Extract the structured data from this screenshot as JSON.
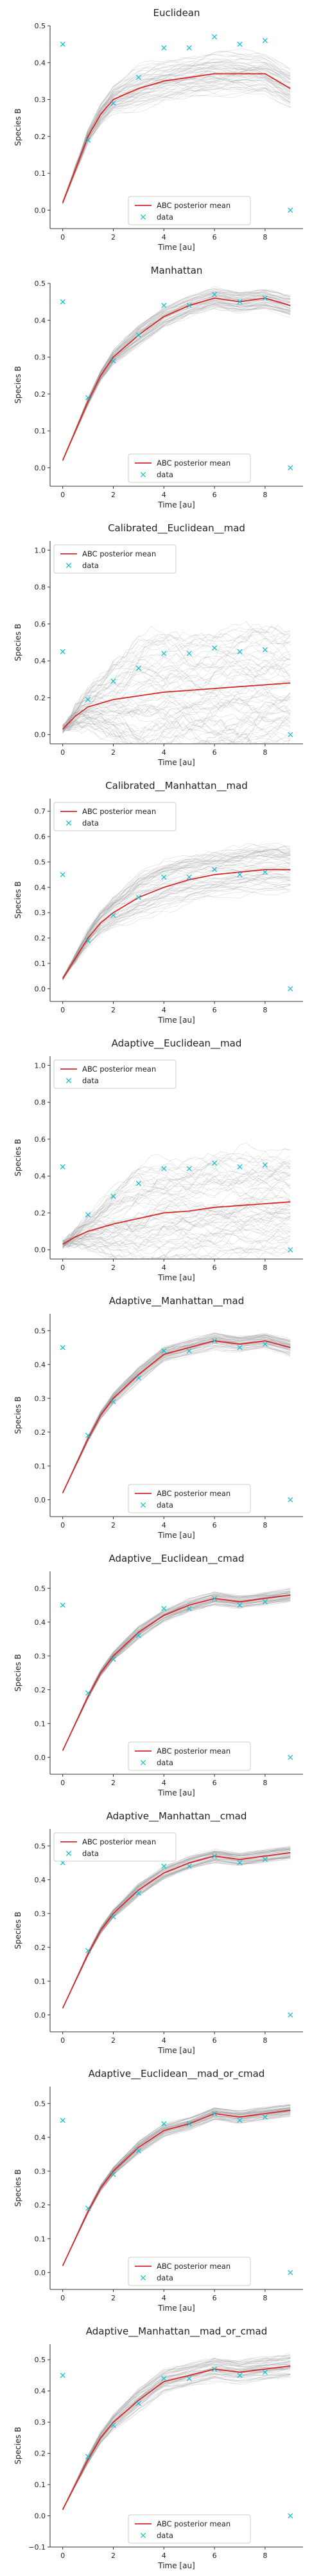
{
  "colors": {
    "mean": "#d62728",
    "data": "#17becf",
    "samples": "#9a9a9a",
    "legend_border": "#cccccc"
  },
  "chart_data": [
    {
      "type": "line",
      "title": "Euclidean",
      "xlabel": "Time [au]",
      "ylabel": "Species B",
      "xlim": [
        -0.5,
        9.5
      ],
      "ylim": [
        -0.05,
        0.5
      ],
      "xticks": [
        0,
        2,
        4,
        6,
        8
      ],
      "yticks": [
        0.0,
        0.1,
        0.2,
        0.3,
        0.4,
        0.5
      ],
      "ytick_labels": [
        "0.0",
        "0.1",
        "0.2",
        "0.3",
        "0.4",
        "0.5"
      ],
      "legend": {
        "placement": "lower-center",
        "entries": [
          "ABC posterior mean",
          "data"
        ]
      },
      "series": [
        {
          "name": "ABC posterior mean",
          "kind": "line",
          "x": [
            0,
            0.5,
            1,
            1.5,
            2,
            3,
            4,
            5,
            6,
            7,
            8,
            9
          ],
          "y": [
            0.02,
            0.11,
            0.2,
            0.26,
            0.3,
            0.33,
            0.35,
            0.36,
            0.37,
            0.37,
            0.37,
            0.33
          ]
        },
        {
          "name": "data",
          "kind": "scatter",
          "x": [
            0,
            1,
            2,
            3,
            4,
            5,
            6,
            7,
            8,
            9
          ],
          "y": [
            0.45,
            0.19,
            0.29,
            0.36,
            0.44,
            0.44,
            0.47,
            0.45,
            0.46,
            0.0
          ]
        }
      ],
      "band": {
        "spread": 0.06,
        "n": 60
      }
    },
    {
      "type": "line",
      "title": "Manhattan",
      "xlabel": "Time [au]",
      "ylabel": "Species B",
      "xlim": [
        -0.5,
        9.5
      ],
      "ylim": [
        -0.05,
        0.5
      ],
      "xticks": [
        0,
        2,
        4,
        6,
        8
      ],
      "yticks": [
        0.0,
        0.1,
        0.2,
        0.3,
        0.4,
        0.5
      ],
      "ytick_labels": [
        "0.0",
        "0.1",
        "0.2",
        "0.3",
        "0.4",
        "0.5"
      ],
      "legend": {
        "placement": "lower-center",
        "entries": [
          "ABC posterior mean",
          "data"
        ]
      },
      "series": [
        {
          "name": "ABC posterior mean",
          "kind": "line",
          "x": [
            0,
            0.5,
            1,
            1.5,
            2,
            3,
            4,
            5,
            6,
            7,
            8,
            9
          ],
          "y": [
            0.02,
            0.1,
            0.18,
            0.25,
            0.3,
            0.36,
            0.41,
            0.44,
            0.46,
            0.45,
            0.46,
            0.44
          ]
        },
        {
          "name": "data",
          "kind": "scatter",
          "x": [
            0,
            1,
            2,
            3,
            4,
            5,
            6,
            7,
            8,
            9
          ],
          "y": [
            0.45,
            0.19,
            0.29,
            0.36,
            0.44,
            0.44,
            0.47,
            0.45,
            0.46,
            0.0
          ]
        }
      ],
      "band": {
        "spread": 0.03,
        "n": 60
      }
    },
    {
      "type": "line",
      "title": "Calibrated__Euclidean__mad",
      "xlabel": "Time [au]",
      "ylabel": "Species B",
      "xlim": [
        -0.5,
        9.5
      ],
      "ylim": [
        -0.05,
        1.05
      ],
      "xticks": [
        0,
        2,
        4,
        6,
        8
      ],
      "yticks": [
        0.0,
        0.2,
        0.4,
        0.6,
        0.8,
        1.0
      ],
      "ytick_labels": [
        "0.0",
        "0.2",
        "0.4",
        "0.6",
        "0.8",
        "1.0"
      ],
      "legend": {
        "placement": "upper-left",
        "entries": [
          "ABC posterior mean",
          "data"
        ]
      },
      "series": [
        {
          "name": "ABC posterior mean",
          "kind": "line",
          "x": [
            0,
            0.5,
            1,
            1.5,
            2,
            3,
            4,
            5,
            6,
            7,
            8,
            9
          ],
          "y": [
            0.03,
            0.1,
            0.15,
            0.17,
            0.19,
            0.21,
            0.23,
            0.24,
            0.25,
            0.26,
            0.27,
            0.28
          ]
        },
        {
          "name": "data",
          "kind": "scatter",
          "x": [
            0,
            1,
            2,
            3,
            4,
            5,
            6,
            7,
            8,
            9
          ],
          "y": [
            0.45,
            0.19,
            0.29,
            0.36,
            0.44,
            0.44,
            0.47,
            0.45,
            0.46,
            0.0
          ]
        }
      ],
      "band": {
        "spread": 0.35,
        "n": 70
      }
    },
    {
      "type": "line",
      "title": "Calibrated__Manhattan__mad",
      "xlabel": "Time [au]",
      "ylabel": "Species B",
      "xlim": [
        -0.5,
        9.5
      ],
      "ylim": [
        -0.05,
        0.75
      ],
      "xticks": [
        0,
        2,
        4,
        6,
        8
      ],
      "yticks": [
        0.0,
        0.1,
        0.2,
        0.3,
        0.4,
        0.5,
        0.6,
        0.7
      ],
      "ytick_labels": [
        "0.0",
        "0.1",
        "0.2",
        "0.3",
        "0.4",
        "0.5",
        "0.6",
        "0.7"
      ],
      "legend": {
        "placement": "upper-left",
        "entries": [
          "ABC posterior mean",
          "data"
        ]
      },
      "series": [
        {
          "name": "ABC posterior mean",
          "kind": "line",
          "x": [
            0,
            0.5,
            1,
            1.5,
            2,
            3,
            4,
            5,
            6,
            7,
            8,
            9
          ],
          "y": [
            0.04,
            0.12,
            0.2,
            0.26,
            0.3,
            0.36,
            0.4,
            0.43,
            0.45,
            0.46,
            0.47,
            0.47
          ]
        },
        {
          "name": "data",
          "kind": "scatter",
          "x": [
            0,
            1,
            2,
            3,
            4,
            5,
            6,
            7,
            8,
            9
          ],
          "y": [
            0.45,
            0.19,
            0.29,
            0.36,
            0.44,
            0.44,
            0.47,
            0.45,
            0.46,
            0.0
          ]
        }
      ],
      "band": {
        "spread": 0.1,
        "n": 60
      }
    },
    {
      "type": "line",
      "title": "Adaptive__Euclidean__mad",
      "xlabel": "Time [au]",
      "ylabel": "Species B",
      "xlim": [
        -0.5,
        9.5
      ],
      "ylim": [
        -0.05,
        1.05
      ],
      "xticks": [
        0,
        2,
        4,
        6,
        8
      ],
      "yticks": [
        0.0,
        0.2,
        0.4,
        0.6,
        0.8,
        1.0
      ],
      "ytick_labels": [
        "0.0",
        "0.2",
        "0.4",
        "0.6",
        "0.8",
        "1.0"
      ],
      "legend": {
        "placement": "upper-left",
        "entries": [
          "ABC posterior mean",
          "data"
        ]
      },
      "series": [
        {
          "name": "ABC posterior mean",
          "kind": "line",
          "x": [
            0,
            0.5,
            1,
            1.5,
            2,
            3,
            4,
            5,
            6,
            7,
            8,
            9
          ],
          "y": [
            0.03,
            0.07,
            0.1,
            0.12,
            0.14,
            0.17,
            0.2,
            0.21,
            0.23,
            0.24,
            0.25,
            0.26
          ]
        },
        {
          "name": "data",
          "kind": "scatter",
          "x": [
            0,
            1,
            2,
            3,
            4,
            5,
            6,
            7,
            8,
            9
          ],
          "y": [
            0.45,
            0.19,
            0.29,
            0.36,
            0.44,
            0.44,
            0.47,
            0.45,
            0.46,
            0.0
          ]
        }
      ],
      "band": {
        "spread": 0.3,
        "n": 70
      }
    },
    {
      "type": "line",
      "title": "Adaptive__Manhattan__mad",
      "xlabel": "Time [au]",
      "ylabel": "Species B",
      "xlim": [
        -0.5,
        9.5
      ],
      "ylim": [
        -0.05,
        0.55
      ],
      "xticks": [
        0,
        2,
        4,
        6,
        8
      ],
      "yticks": [
        0.0,
        0.1,
        0.2,
        0.3,
        0.4,
        0.5
      ],
      "ytick_labels": [
        "0.0",
        "0.1",
        "0.2",
        "0.3",
        "0.4",
        "0.5"
      ],
      "legend": {
        "placement": "lower-center",
        "entries": [
          "ABC posterior mean",
          "data"
        ]
      },
      "series": [
        {
          "name": "ABC posterior mean",
          "kind": "line",
          "x": [
            0,
            0.5,
            1,
            1.5,
            2,
            3,
            4,
            5,
            6,
            7,
            8,
            9
          ],
          "y": [
            0.02,
            0.1,
            0.18,
            0.25,
            0.3,
            0.37,
            0.43,
            0.45,
            0.47,
            0.46,
            0.47,
            0.45
          ]
        },
        {
          "name": "data",
          "kind": "scatter",
          "x": [
            0,
            1,
            2,
            3,
            4,
            5,
            6,
            7,
            8,
            9
          ],
          "y": [
            0.45,
            0.19,
            0.29,
            0.36,
            0.44,
            0.44,
            0.47,
            0.45,
            0.46,
            0.0
          ]
        }
      ],
      "band": {
        "spread": 0.025,
        "n": 60
      }
    },
    {
      "type": "line",
      "title": "Adaptive__Euclidean__cmad",
      "xlabel": "Time [au]",
      "ylabel": "Species B",
      "xlim": [
        -0.5,
        9.5
      ],
      "ylim": [
        -0.05,
        0.55
      ],
      "xticks": [
        0,
        2,
        4,
        6,
        8
      ],
      "yticks": [
        0.0,
        0.1,
        0.2,
        0.3,
        0.4,
        0.5
      ],
      "ytick_labels": [
        "0.0",
        "0.1",
        "0.2",
        "0.3",
        "0.4",
        "0.5"
      ],
      "legend": {
        "placement": "lower-center",
        "entries": [
          "ABC posterior mean",
          "data"
        ]
      },
      "series": [
        {
          "name": "ABC posterior mean",
          "kind": "line",
          "x": [
            0,
            0.5,
            1,
            1.5,
            2,
            3,
            4,
            5,
            6,
            7,
            8,
            9
          ],
          "y": [
            0.02,
            0.1,
            0.18,
            0.25,
            0.3,
            0.37,
            0.42,
            0.45,
            0.47,
            0.46,
            0.47,
            0.48
          ]
        },
        {
          "name": "data",
          "kind": "scatter",
          "x": [
            0,
            1,
            2,
            3,
            4,
            5,
            6,
            7,
            8,
            9
          ],
          "y": [
            0.45,
            0.19,
            0.29,
            0.36,
            0.44,
            0.44,
            0.47,
            0.45,
            0.46,
            0.0
          ]
        }
      ],
      "band": {
        "spread": 0.02,
        "n": 60
      }
    },
    {
      "type": "line",
      "title": "Adaptive__Manhattan__cmad",
      "xlabel": "Time [au]",
      "ylabel": "Species B",
      "xlim": [
        -0.5,
        9.5
      ],
      "ylim": [
        -0.05,
        0.55
      ],
      "xticks": [
        0,
        2,
        4,
        6,
        8
      ],
      "yticks": [
        0.0,
        0.1,
        0.2,
        0.3,
        0.4,
        0.5
      ],
      "ytick_labels": [
        "0.0",
        "0.1",
        "0.2",
        "0.3",
        "0.4",
        "0.5"
      ],
      "legend": {
        "placement": "upper-left",
        "entries": [
          "ABC posterior mean",
          "data"
        ]
      },
      "series": [
        {
          "name": "ABC posterior mean",
          "kind": "line",
          "x": [
            0,
            0.5,
            1,
            1.5,
            2,
            3,
            4,
            5,
            6,
            7,
            8,
            9
          ],
          "y": [
            0.02,
            0.1,
            0.18,
            0.25,
            0.3,
            0.37,
            0.42,
            0.45,
            0.47,
            0.46,
            0.47,
            0.48
          ]
        },
        {
          "name": "data",
          "kind": "scatter",
          "x": [
            0,
            1,
            2,
            3,
            4,
            5,
            6,
            7,
            8,
            9
          ],
          "y": [
            0.45,
            0.19,
            0.29,
            0.36,
            0.44,
            0.44,
            0.47,
            0.45,
            0.46,
            0.0
          ]
        }
      ],
      "band": {
        "spread": 0.02,
        "n": 60
      }
    },
    {
      "type": "line",
      "title": "Adaptive__Euclidean__mad_or_cmad",
      "xlabel": "Time [au]",
      "ylabel": "Species B",
      "xlim": [
        -0.5,
        9.5
      ],
      "ylim": [
        -0.05,
        0.55
      ],
      "xticks": [
        0,
        2,
        4,
        6,
        8
      ],
      "yticks": [
        0.0,
        0.1,
        0.2,
        0.3,
        0.4,
        0.5
      ],
      "ytick_labels": [
        "0.0",
        "0.1",
        "0.2",
        "0.3",
        "0.4",
        "0.5"
      ],
      "legend": {
        "placement": "lower-center",
        "entries": [
          "ABC posterior mean",
          "data"
        ]
      },
      "series": [
        {
          "name": "ABC posterior mean",
          "kind": "line",
          "x": [
            0,
            0.5,
            1,
            1.5,
            2,
            3,
            4,
            5,
            6,
            7,
            8,
            9
          ],
          "y": [
            0.02,
            0.1,
            0.18,
            0.25,
            0.3,
            0.37,
            0.42,
            0.44,
            0.47,
            0.46,
            0.47,
            0.48
          ]
        },
        {
          "name": "data",
          "kind": "scatter",
          "x": [
            0,
            1,
            2,
            3,
            4,
            5,
            6,
            7,
            8,
            9
          ],
          "y": [
            0.45,
            0.19,
            0.29,
            0.36,
            0.44,
            0.44,
            0.47,
            0.45,
            0.46,
            0.0
          ]
        }
      ],
      "band": {
        "spread": 0.02,
        "n": 60
      }
    },
    {
      "type": "line",
      "title": "Adaptive__Manhattan__mad_or_cmad",
      "xlabel": "Time [au]",
      "ylabel": "Species B",
      "xlim": [
        -0.5,
        9.5
      ],
      "ylim": [
        -0.1,
        0.55
      ],
      "xticks": [
        0,
        2,
        4,
        6,
        8
      ],
      "yticks": [
        -0.1,
        0.0,
        0.1,
        0.2,
        0.3,
        0.4,
        0.5
      ],
      "ytick_labels": [
        "−0.1",
        "0.0",
        "0.1",
        "0.2",
        "0.3",
        "0.4",
        "0.5"
      ],
      "legend": {
        "placement": "lower-center",
        "entries": [
          "ABC posterior mean",
          "data"
        ]
      },
      "series": [
        {
          "name": "ABC posterior mean",
          "kind": "line",
          "x": [
            0,
            0.5,
            1,
            1.5,
            2,
            3,
            4,
            5,
            6,
            7,
            8,
            9
          ],
          "y": [
            0.02,
            0.1,
            0.18,
            0.25,
            0.3,
            0.37,
            0.43,
            0.45,
            0.47,
            0.46,
            0.47,
            0.48
          ]
        },
        {
          "name": "data",
          "kind": "scatter",
          "x": [
            0,
            1,
            2,
            3,
            4,
            5,
            6,
            7,
            8,
            9
          ],
          "y": [
            0.45,
            0.19,
            0.29,
            0.36,
            0.44,
            0.44,
            0.47,
            0.45,
            0.46,
            0.0
          ]
        }
      ],
      "band": {
        "spread": 0.04,
        "n": 60
      }
    }
  ]
}
